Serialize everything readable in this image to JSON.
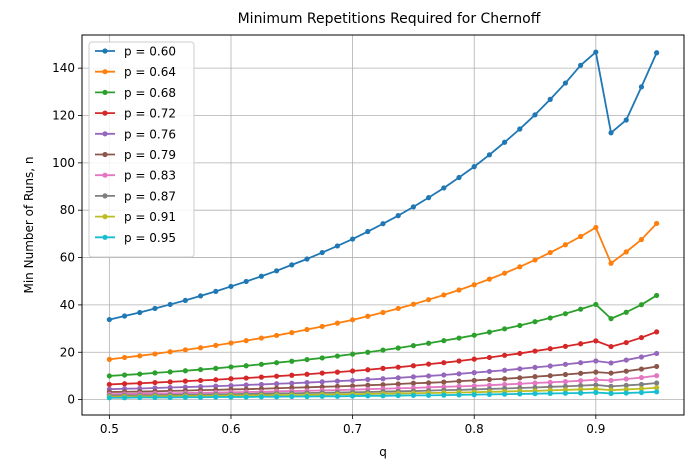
{
  "chart_data": {
    "type": "line",
    "title": "Minimum Repetitions Required for Chernoff",
    "xlabel": "q",
    "ylabel": "Min Number of Runs, n",
    "xlim": [
      0.4775,
      0.9725
    ],
    "ylim": [
      -6.5,
      154
    ],
    "xticks": [
      0.5,
      0.6,
      0.7,
      0.8,
      0.9
    ],
    "xtick_labels": [
      "0.5",
      "0.6",
      "0.7",
      "0.8",
      "0.9"
    ],
    "yticks": [
      0,
      20,
      40,
      60,
      80,
      100,
      120,
      140
    ],
    "ytick_labels": [
      "0",
      "20",
      "40",
      "60",
      "80",
      "100",
      "120",
      "140"
    ],
    "grid": true,
    "legend_position": "top-left",
    "x": [
      0.5,
      0.5125,
      0.525,
      0.5375,
      0.55,
      0.5625,
      0.575,
      0.5875,
      0.6,
      0.6125,
      0.625,
      0.6375,
      0.65,
      0.6625,
      0.675,
      0.6875,
      0.7,
      0.7125,
      0.725,
      0.7375,
      0.75,
      0.7625,
      0.775,
      0.7875,
      0.8,
      0.8125,
      0.825,
      0.8375,
      0.85,
      0.8625,
      0.875,
      0.8875,
      0.9,
      0.9125,
      0.925,
      0.9375,
      0.95
    ],
    "series": [
      {
        "name": "p = 0.60",
        "color": "#1f77b4",
        "values": [
          33.8,
          35.3,
          36.8,
          38.5,
          40.2,
          41.9,
          43.8,
          45.7,
          47.8,
          49.9,
          52.1,
          54.4,
          56.9,
          59.4,
          62.1,
          64.9,
          67.8,
          71.0,
          74.3,
          77.7,
          81.4,
          85.3,
          89.4,
          93.8,
          98.4,
          103.4,
          108.7,
          114.3,
          120.3,
          126.8,
          133.7,
          141.2,
          146.8,
          112.7,
          118.1,
          132.1,
          146.5
        ]
      },
      {
        "name": "p = 0.64",
        "color": "#ff7f0e",
        "values": [
          17.0,
          17.8,
          18.5,
          19.3,
          20.2,
          21.0,
          21.9,
          22.9,
          23.9,
          24.9,
          26.0,
          27.1,
          28.3,
          29.6,
          30.9,
          32.3,
          33.7,
          35.2,
          36.8,
          38.5,
          40.3,
          42.2,
          44.2,
          46.3,
          48.5,
          50.9,
          53.4,
          56.1,
          59.0,
          62.1,
          65.4,
          68.9,
          72.7,
          57.6,
          62.4,
          67.6,
          74.4
        ]
      },
      {
        "name": "p = 0.68",
        "color": "#2ca02c",
        "values": [
          10.0,
          10.4,
          10.8,
          11.3,
          11.7,
          12.2,
          12.7,
          13.2,
          13.8,
          14.3,
          14.9,
          15.6,
          16.2,
          16.9,
          17.6,
          18.4,
          19.2,
          20.0,
          20.9,
          21.8,
          22.8,
          23.8,
          24.9,
          26.0,
          27.2,
          28.5,
          29.9,
          31.3,
          32.9,
          34.5,
          36.3,
          38.2,
          40.2,
          34.2,
          36.9,
          40.1,
          44.0
        ]
      },
      {
        "name": "p = 0.72",
        "color": "#d62728",
        "values": [
          6.4,
          6.7,
          6.9,
          7.2,
          7.5,
          7.8,
          8.1,
          8.4,
          8.8,
          9.1,
          9.5,
          9.9,
          10.3,
          10.7,
          11.2,
          11.6,
          12.1,
          12.6,
          13.2,
          13.7,
          14.3,
          15.0,
          15.6,
          16.3,
          17.1,
          17.8,
          18.7,
          19.5,
          20.5,
          21.5,
          22.5,
          23.6,
          24.8,
          22.4,
          24.1,
          26.2,
          28.6
        ]
      },
      {
        "name": "p = 0.76",
        "color": "#9467bd",
        "values": [
          4.4,
          4.6,
          4.7,
          4.9,
          5.1,
          5.3,
          5.5,
          5.7,
          5.9,
          6.2,
          6.4,
          6.7,
          6.9,
          7.2,
          7.5,
          7.8,
          8.1,
          8.5,
          8.8,
          9.2,
          9.6,
          10.0,
          10.4,
          10.9,
          11.4,
          11.9,
          12.4,
          13.0,
          13.6,
          14.2,
          14.9,
          15.6,
          16.3,
          15.5,
          16.7,
          18.0,
          19.5
        ]
      },
      {
        "name": "p = 0.79",
        "color": "#8c564b",
        "values": [
          3.2,
          3.3,
          3.4,
          3.5,
          3.7,
          3.8,
          4.0,
          4.1,
          4.3,
          4.4,
          4.6,
          4.8,
          5.0,
          5.2,
          5.4,
          5.6,
          5.8,
          6.1,
          6.3,
          6.6,
          6.9,
          7.1,
          7.4,
          7.8,
          8.1,
          8.5,
          8.8,
          9.2,
          9.7,
          10.1,
          10.6,
          11.1,
          11.6,
          11.2,
          12.0,
          12.9,
          14.0
        ]
      },
      {
        "name": "p = 0.83",
        "color": "#e377c2",
        "values": [
          2.3,
          2.4,
          2.5,
          2.6,
          2.7,
          2.8,
          2.9,
          3.0,
          3.1,
          3.2,
          3.3,
          3.5,
          3.6,
          3.7,
          3.9,
          4.0,
          4.2,
          4.4,
          4.6,
          4.8,
          4.9,
          5.2,
          5.4,
          5.6,
          5.8,
          6.1,
          6.4,
          6.7,
          7.0,
          7.3,
          7.6,
          8.0,
          8.4,
          8.1,
          8.7,
          9.3,
          10.1
        ]
      },
      {
        "name": "p = 0.87",
        "color": "#7f7f7f",
        "values": [
          1.7,
          1.8,
          1.8,
          1.9,
          2.0,
          2.1,
          2.1,
          2.2,
          2.3,
          2.4,
          2.5,
          2.6,
          2.7,
          2.8,
          2.9,
          3.0,
          3.1,
          3.2,
          3.4,
          3.5,
          3.6,
          3.8,
          4.0,
          4.1,
          4.3,
          4.5,
          4.7,
          4.9,
          5.1,
          5.4,
          5.6,
          5.9,
          6.2,
          5.6,
          6.0,
          6.4,
          7.0
        ]
      },
      {
        "name": "p = 0.91",
        "color": "#bcbd22",
        "values": [
          1.2,
          1.3,
          1.3,
          1.4,
          1.4,
          1.5,
          1.5,
          1.6,
          1.7,
          1.7,
          1.8,
          1.9,
          1.9,
          2.0,
          2.1,
          2.2,
          2.3,
          2.4,
          2.5,
          2.6,
          2.7,
          2.8,
          2.9,
          3.0,
          3.1,
          3.3,
          3.4,
          3.6,
          3.7,
          3.9,
          4.1,
          4.3,
          4.5,
          4.0,
          4.3,
          4.6,
          5.0
        ]
      },
      {
        "name": "p = 0.95",
        "color": "#17becf",
        "values": [
          0.8,
          0.8,
          0.9,
          0.9,
          0.9,
          1.0,
          1.0,
          1.1,
          1.1,
          1.1,
          1.2,
          1.2,
          1.3,
          1.3,
          1.4,
          1.4,
          1.5,
          1.6,
          1.6,
          1.7,
          1.8,
          1.8,
          1.9,
          2.0,
          2.1,
          2.2,
          2.3,
          2.4,
          2.5,
          2.6,
          2.7,
          2.8,
          3.0,
          2.6,
          2.8,
          3.0,
          3.3
        ]
      }
    ]
  }
}
